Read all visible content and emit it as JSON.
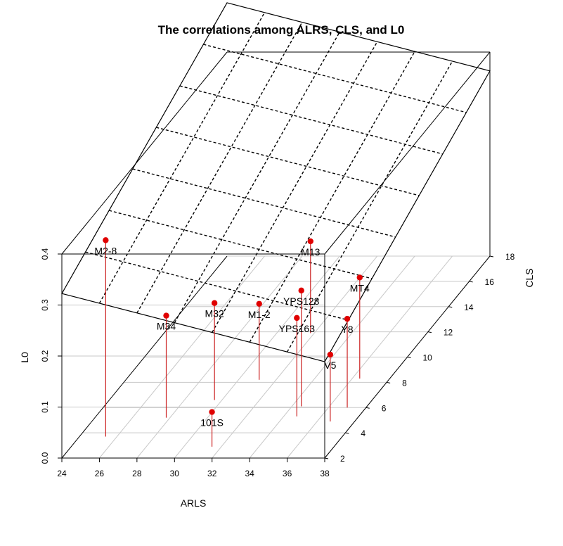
{
  "chart_data": {
    "type": "scatter3d",
    "title": "The correlations among ALRS, CLS, and L0",
    "xlabel": "ARLS",
    "ylabel": "CLS",
    "zlabel": "L0",
    "xlim": [
      24,
      38
    ],
    "ylim": [
      2,
      18
    ],
    "zlim": [
      0,
      0.4
    ],
    "xticks": [
      "24",
      "26",
      "28",
      "30",
      "32",
      "34",
      "36",
      "38"
    ],
    "yticks": [
      "2",
      "4",
      "6",
      "8",
      "10",
      "12",
      "14",
      "16",
      "18"
    ],
    "zticks": [
      "0.0",
      "0.1",
      "0.2",
      "0.3",
      "0.4"
    ],
    "grid": true,
    "point_color": "#e00000",
    "drop_line_color": "#cc2222",
    "plane_color": "#000000",
    "points": [
      {
        "label": "M2-8",
        "x": 25.4,
        "y": 3.7,
        "z": 0.385
      },
      {
        "label": "M34",
        "x": 27.8,
        "y": 5.2,
        "z": 0.2
      },
      {
        "label": "M32",
        "x": 29.6,
        "y": 6.6,
        "z": 0.19
      },
      {
        "label": "M1-2",
        "x": 31.1,
        "y": 8.2,
        "z": 0.149
      },
      {
        "label": "M13",
        "x": 31.8,
        "y": 11.9,
        "z": 0.18
      },
      {
        "label": "101S",
        "x": 31.5,
        "y": 2.9,
        "z": 0.068
      },
      {
        "label": "YPS128",
        "x": 34.5,
        "y": 6.1,
        "z": 0.227
      },
      {
        "label": "YPS163",
        "x": 34.7,
        "y": 5.3,
        "z": 0.193
      },
      {
        "label": "MT4",
        "x": 36.4,
        "y": 8.3,
        "z": 0.198
      },
      {
        "label": "Y8",
        "x": 37.0,
        "y": 6.0,
        "z": 0.174
      },
      {
        "label": "V5",
        "x": 36.7,
        "y": 4.9,
        "z": 0.131
      }
    ]
  }
}
